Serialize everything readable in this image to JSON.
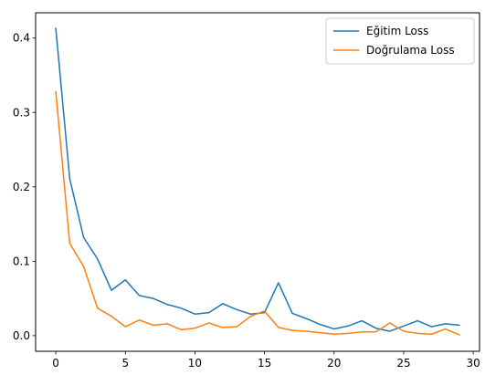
{
  "chart_data": {
    "type": "line",
    "title": "",
    "xlabel": "",
    "ylabel": "",
    "xlim": [
      -1.45,
      30.45
    ],
    "ylim": [
      -0.021,
      0.434
    ],
    "xticks": [
      0,
      5,
      10,
      15,
      20,
      25,
      30
    ],
    "xtick_labels": [
      "0",
      "5",
      "10",
      "15",
      "20",
      "25",
      "30"
    ],
    "yticks": [
      0.0,
      0.1,
      0.2,
      0.3,
      0.4
    ],
    "ytick_labels": [
      "0.0",
      "0.1",
      "0.2",
      "0.3",
      "0.4"
    ],
    "grid": false,
    "legend_position": "top-right",
    "x": [
      0,
      1,
      2,
      3,
      4,
      5,
      6,
      7,
      8,
      9,
      10,
      11,
      12,
      13,
      14,
      15,
      16,
      17,
      18,
      19,
      20,
      21,
      22,
      23,
      24,
      25,
      26,
      27,
      28,
      29
    ],
    "series": [
      {
        "name": "Eğitim Loss",
        "color": "#1f77b4",
        "values": [
          0.413,
          0.211,
          0.132,
          0.103,
          0.061,
          0.075,
          0.054,
          0.05,
          0.042,
          0.037,
          0.029,
          0.031,
          0.043,
          0.035,
          0.029,
          0.031,
          0.071,
          0.03,
          0.023,
          0.015,
          0.009,
          0.013,
          0.02,
          0.01,
          0.006,
          0.013,
          0.02,
          0.012,
          0.016,
          0.014
        ]
      },
      {
        "name": "Doğrulama Loss",
        "color": "#ff7f0e",
        "values": [
          0.328,
          0.124,
          0.093,
          0.037,
          0.026,
          0.012,
          0.021,
          0.014,
          0.016,
          0.008,
          0.01,
          0.017,
          0.011,
          0.012,
          0.026,
          0.033,
          0.011,
          0.007,
          0.006,
          0.004,
          0.002,
          0.003,
          0.005,
          0.005,
          0.017,
          0.006,
          0.003,
          0.002,
          0.009,
          0.001
        ]
      }
    ]
  }
}
